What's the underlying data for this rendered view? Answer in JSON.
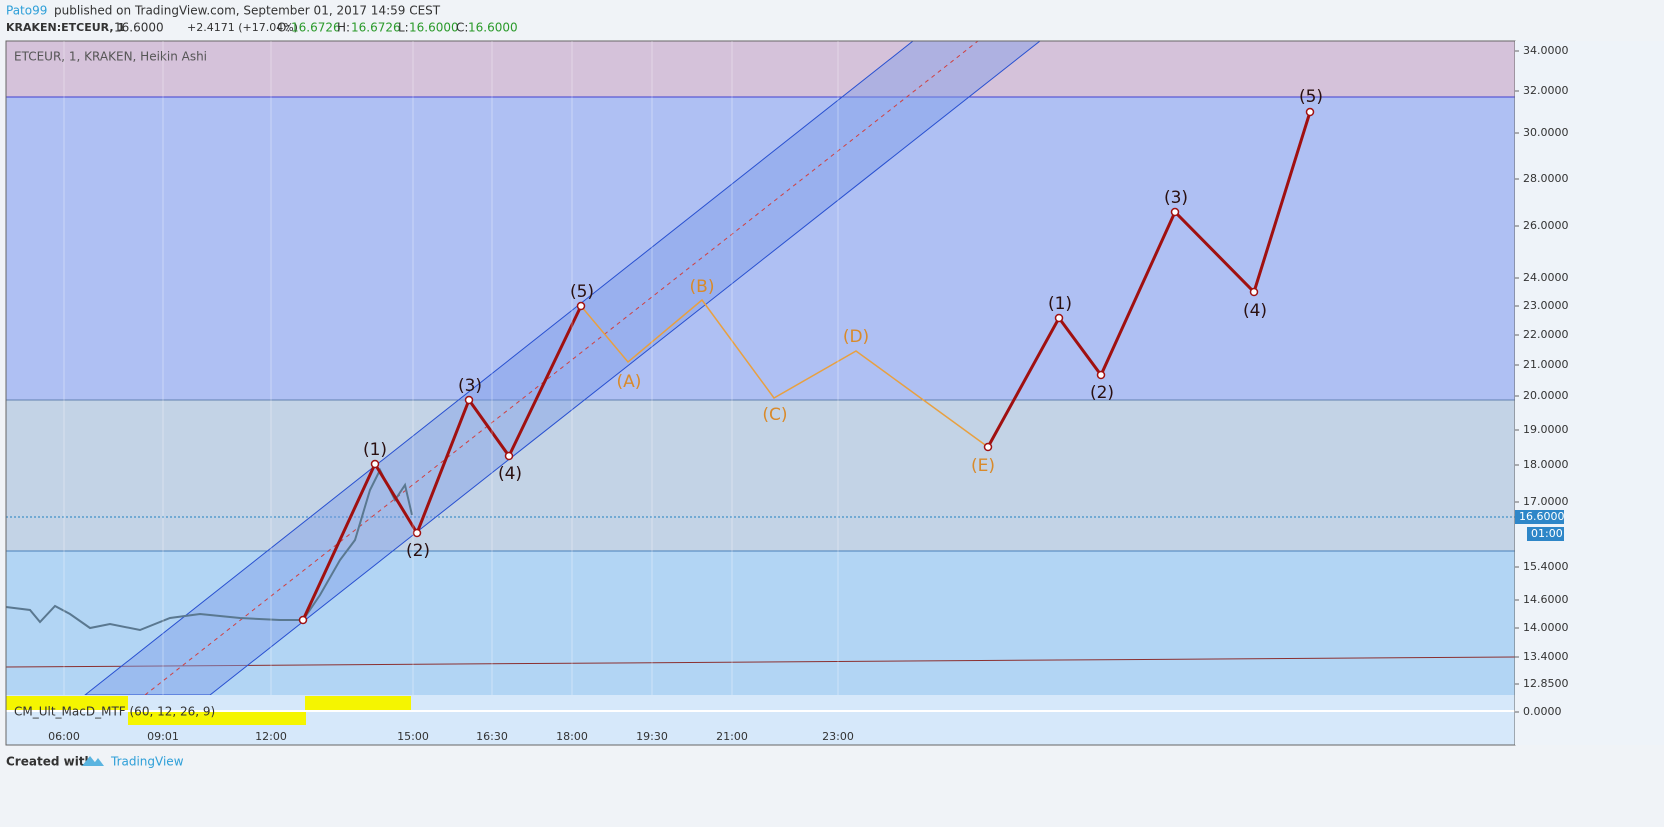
{
  "header": {
    "author": "Pato99",
    "published": "published on TradingView.com, September 01, 2017 14:59 CEST"
  },
  "ticker": {
    "symbol": "KRAKEN:ETCEUR, 1",
    "price": "16.6000",
    "change": "+2.4171 (+17.04%)",
    "open_label": "O:",
    "open": "16.6726",
    "high_label": "H:",
    "high": "16.6726",
    "low_label": "L:",
    "low": "16.6000",
    "close_label": "C:",
    "close": "16.6000"
  },
  "pane_title": "ETCEUR, 1, KRAKEN, Heikin Ashi",
  "price_axis": [
    "34.0000",
    "32.0000",
    "30.0000",
    "28.0000",
    "26.0000",
    "24.0000",
    "23.0000",
    "22.0000",
    "21.0000",
    "20.0000",
    "19.0000",
    "18.0000",
    "17.0000",
    "15.4000",
    "14.6000",
    "14.0000",
    "13.4000",
    "12.8500",
    "0.0000"
  ],
  "current_price": "16.6000",
  "countdown": "01:00",
  "time_axis": [
    "06:00",
    "09:01",
    "12:00",
    "15:00",
    "16:30",
    "18:00",
    "19:30",
    "21:00",
    "23:00"
  ],
  "indicator": "CM_Ult_MacD_MTF (60, 12, 26, 9)",
  "waves": [
    "(1)",
    "(2)",
    "(3)",
    "(4)",
    "(5)",
    "(A)",
    "(B)",
    "(C)",
    "(D)",
    "(E)",
    "(1)",
    "(2)",
    "(3)",
    "(4)",
    "(5)"
  ],
  "footer": {
    "created": "Created with",
    "brand": "TradingView"
  }
}
